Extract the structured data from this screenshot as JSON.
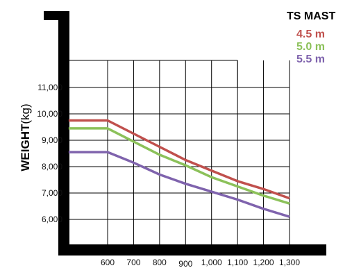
{
  "chart_data": {
    "type": "line",
    "ylabel": {
      "bold": "WEIGHT",
      "unit": "(kg)"
    },
    "xlabel": "",
    "x": [
      600,
      700,
      800,
      900,
      1000,
      1100,
      1200,
      1300
    ],
    "x_tick_labels": [
      "600",
      "700",
      "800",
      "900",
      "1,000",
      "1,100",
      "1,200",
      "1,300"
    ],
    "y_tick_values": [
      6000,
      7000,
      8000,
      9000,
      10000,
      11000
    ],
    "y_tick_labels": [
      "6,000",
      "7,000",
      "8,000",
      "9,000",
      "10,000",
      "11,000"
    ],
    "ylim": [
      5000,
      11500
    ],
    "grid": true,
    "legend": {
      "title": "TS  MAST",
      "placement": "top-right"
    },
    "series": [
      {
        "name": "4.5 m",
        "color": "#c0504d",
        "points": [
          [
            450,
            9750
          ],
          [
            600,
            9750
          ],
          [
            700,
            9250
          ],
          [
            800,
            8750
          ],
          [
            900,
            8250
          ],
          [
            1000,
            7850
          ],
          [
            1100,
            7450
          ],
          [
            1200,
            7150
          ],
          [
            1300,
            6800
          ]
        ]
      },
      {
        "name": "5.0 m",
        "color": "#8cc15a",
        "points": [
          [
            450,
            9450
          ],
          [
            600,
            9450
          ],
          [
            700,
            8950
          ],
          [
            800,
            8450
          ],
          [
            900,
            8050
          ],
          [
            1000,
            7600
          ],
          [
            1100,
            7250
          ],
          [
            1200,
            6900
          ],
          [
            1300,
            6600
          ]
        ]
      },
      {
        "name": "5.5 m",
        "color": "#7f63ad",
        "points": [
          [
            450,
            8550
          ],
          [
            600,
            8550
          ],
          [
            700,
            8150
          ],
          [
            800,
            7700
          ],
          [
            900,
            7350
          ],
          [
            1000,
            7050
          ],
          [
            1100,
            6750
          ],
          [
            1200,
            6400
          ],
          [
            1300,
            6100
          ]
        ]
      }
    ]
  }
}
